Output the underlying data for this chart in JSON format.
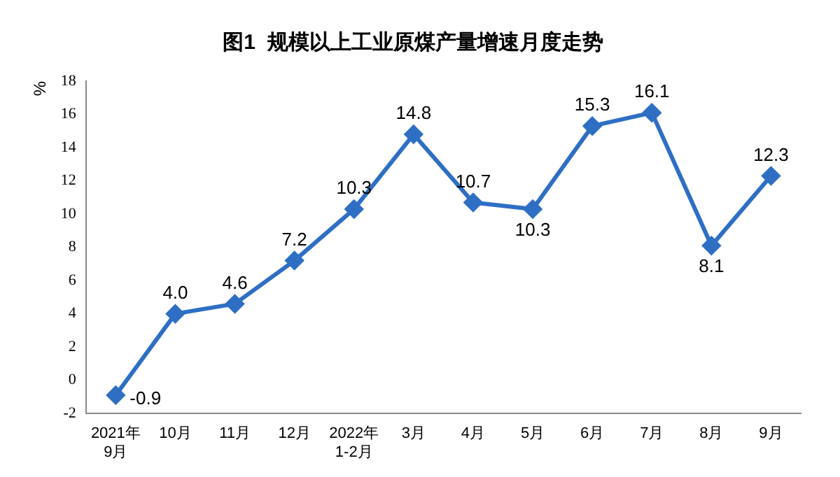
{
  "chart_data": {
    "type": "line",
    "title": "图1  规模以上工业原煤产量增速月度走势",
    "ylabel": "%",
    "categories": [
      "2021年\n9月",
      "10月",
      "11月",
      "12月",
      "2022年\n1-2月",
      "3月",
      "4月",
      "5月",
      "6月",
      "7月",
      "8月",
      "9月"
    ],
    "series": [
      {
        "color": "#2e6fc4",
        "values": [
          -0.9,
          4.0,
          4.6,
          7.2,
          10.3,
          14.8,
          10.7,
          10.3,
          15.3,
          16.1,
          8.1,
          12.3
        ],
        "value_labels": [
          "-0.9",
          "4.0",
          "4.6",
          "7.2",
          "10.3",
          "14.8",
          "10.7",
          "10.3",
          "15.3",
          "16.1",
          "8.1",
          "12.3"
        ]
      }
    ],
    "ylim": [
      -2,
      18
    ],
    "yticks": [
      -2,
      0,
      2,
      4,
      6,
      8,
      10,
      12,
      14,
      16,
      18
    ],
    "grid": false,
    "legend": false,
    "marker": "diamond",
    "line_style": "solid"
  }
}
